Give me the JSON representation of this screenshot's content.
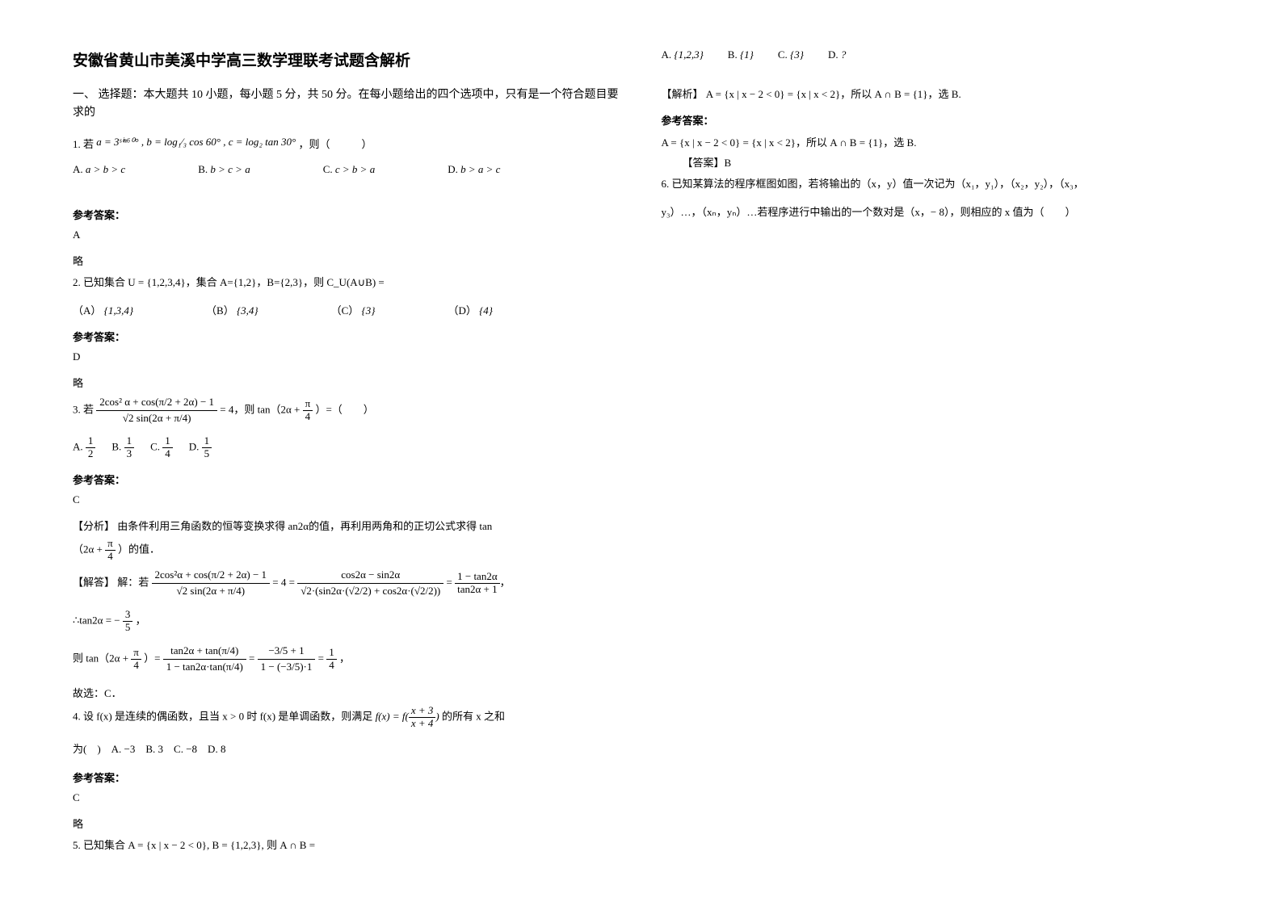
{
  "title": "安徽省黄山市美溪中学高三数学理联考试题含解析",
  "section1": "一、 选择题：本大题共 10 小题，每小题 5 分，共 50 分。在每小题给出的四个选项中，只有是一个符合题目要求的",
  "q1": {
    "stem_prefix": "1. 若",
    "expr": "a = 3ˢⁱⁿ⁶⁰° , b = log₁⁄₃ cos 60° , c = log₂ tan 30°",
    "stem_suffix": "，则（　　　）",
    "optA_label": "A.",
    "optA_text": "a > b > c",
    "optB_label": "B.",
    "optB_text": "b > c > a",
    "optC_label": "C.",
    "optC_text": "c > b > a",
    "optD_label": "D.",
    "optD_text": "b > a > c",
    "ans_label": "参考答案：",
    "ans": "A",
    "expl": "略"
  },
  "q2": {
    "stem": "2. 已知集合 U = {1,2,3,4}，集合 A={1,2}，B={2,3}，则 C_U(A∪B) =",
    "optA_label": "（A）",
    "optA_text": "{1,3,4}",
    "optB_label": "（B）",
    "optB_text": "{3,4}",
    "optC_label": "（C）",
    "optC_text": "{3}",
    "optD_label": "（D）",
    "optD_text": "{4}",
    "ans_label": "参考答案：",
    "ans": "D",
    "expl": "略"
  },
  "q3": {
    "stem_prefix": "3. 若",
    "frac_num": "2cos² α + cos(π/2 + 2α) − 1",
    "frac_den": "√2 sin(2α + π/4)",
    "eq": " = 4，则 tan（2α + ",
    "frac2_num": "π",
    "frac2_den": "4",
    "eq2": "）=（　　）",
    "optA_label": "A.",
    "optA_num": "1",
    "optA_den": "2",
    "optB_label": "B.",
    "optB_num": "1",
    "optB_den": "3",
    "optC_label": "C.",
    "optC_num": "1",
    "optC_den": "4",
    "optD_label": "D.",
    "optD_num": "1",
    "optD_den": "5",
    "ans_label": "参考答案：",
    "ans": "C",
    "analysis_label": "【分析】",
    "analysis": "由条件利用三角函数的恒等变换求得 an2α的值，再利用两角和的正切公式求得 tan",
    "analysis2_prefix": "（2α + ",
    "analysis2_num": "π",
    "analysis2_den": "4",
    "analysis2_suffix": "）的值．",
    "solve_label": "【解答】",
    "solve_prefix": "解：若",
    "lhs_num": "2cos²α + cos(π/2 + 2α) − 1",
    "lhs_den": "√2 sin(2α + π/4)",
    "mid": " = 4 = ",
    "rhs_num": "cos2α − sin2α",
    "rhs_den": "√2·(sin2α·(√2/2) + cos2α·(√2/2))",
    "eq_end": " = ",
    "final_num": "1 − tan2α",
    "final_den": "tan2α + 1",
    "tan2a_prefix": "∴tan2α = −",
    "tan2a_num": "3",
    "tan2a_den": "5",
    "tan2a_suffix": "，",
    "tanline_prefix": "则 tan（2α + ",
    "tanline_num": "π",
    "tanline_den": "4",
    "tanline_mid": "）= ",
    "tf1_num": "tan2α + tan(π/4)",
    "tf1_den": "1 − tan2α·tan(π/4)",
    "tf_eq": " = ",
    "tf2_num": "−3/5 + 1",
    "tf2_den": "1 − (−3/5)·1",
    "tf_eq2": " = ",
    "tf3_num": "1",
    "tf3_den": "4",
    "tf_suffix": "，",
    "conclusion": "故选：C．"
  },
  "q4": {
    "stem_a": "4. 设 f(x) 是连续的偶函数，且当 x > 0 时 f(x) 是单调函数，则满足 ",
    "fx_l": "f(x) = f(",
    "fx_num": "x + 3",
    "fx_den": "x + 4",
    "fx_r": ")",
    "stem_b": " 的所有 x 之和",
    "line2": "为(　)　A. −3　B. 3　C. −8　D. 8",
    "ans_label": "参考答案：",
    "ans": "C",
    "expl": "略"
  },
  "q5": {
    "stem": "5. 已知集合 A = {x | x − 2 < 0}, B = {1,2,3}, 则 A ∩ B =",
    "optA_label": "A.",
    "optA_text": "{1,2,3}",
    "optB_label": "B.",
    "optB_text": "{1}",
    "optC_label": "C.",
    "optC_text": "{3}",
    "optD_label": "D.",
    "optD_text": "?",
    "sol_label": "【解析】",
    "sol": "A = {x | x − 2 < 0} = {x | x < 2}，所以 A ∩ B = {1}，选 B.",
    "ans_label": "参考答案：",
    "ans2": "A = {x | x − 2 < 0} = {x | x < 2}，所以 A ∩ B = {1}，选 B.",
    "final_label": "【答案】",
    "final": "B"
  },
  "q6": {
    "stem_a": "6. 已知某算法的程序框图如图，若将输出的（x，y）值一次记为（x₁，y₁），（x₂，y₂），（x₃，",
    "stem_b": "y₃）…，（xₙ，yₙ）…若程序进行中输出的一个数对是（x，− 8），则相应的 x 值为（　　）"
  }
}
